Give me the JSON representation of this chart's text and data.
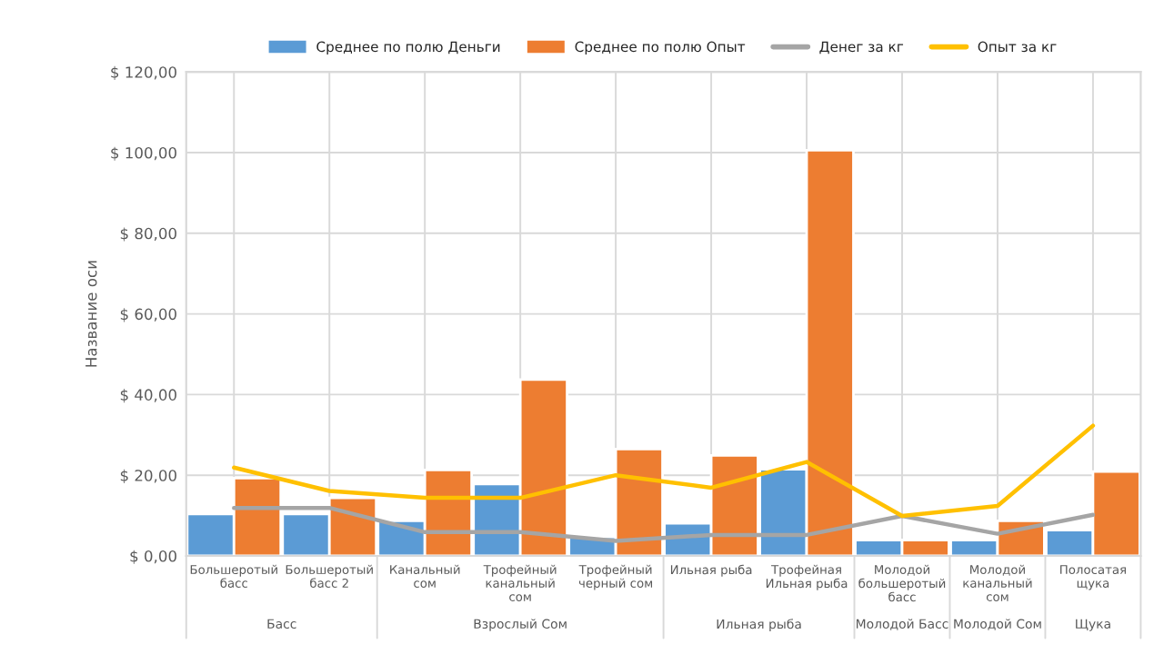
{
  "chart_data": {
    "type": "bar",
    "categories": [
      "Большеротый басс",
      "Большеротый басс 2",
      "Канальный сом",
      "Трофейный канальный сом",
      "Трофейный черный сом",
      "Ильная рыба",
      "Трофейная Ильная рыба",
      "Молодой большеротый басс",
      "Молодой канальный сом",
      "Полосатая щука"
    ],
    "ylabel": "Название оси",
    "series": [
      {
        "name": "Среднее по полю Деньги",
        "color": "#5b9bd5",
        "values": [
          10.4,
          10.4,
          8.7,
          17.8,
          4.7,
          8.1,
          21.5,
          3.9,
          3.9,
          6.4
        ]
      },
      {
        "name": "Среднее по полю Опыт",
        "color": "#ed7d31",
        "values": [
          19.3,
          14.4,
          21.3,
          43.7,
          26.5,
          24.9,
          100.6,
          3.9,
          8.7,
          20.9
        ]
      },
      {
        "name": "Денег за кг",
        "type": "line",
        "color": "#a5a5a5",
        "values": [
          11.9,
          11.9,
          5.9,
          5.9,
          3.7,
          5.2,
          5.2,
          9.9,
          5.5,
          10.2
        ]
      },
      {
        "name": "Опыт за кг",
        "type": "line",
        "color": "#ffc000",
        "values": [
          21.9,
          16.1,
          14.4,
          14.4,
          20,
          16.9,
          23.3,
          9.9,
          12.4,
          32.3
        ]
      }
    ],
    "ylim": [
      0,
      120
    ],
    "yticks": [
      {
        "value": 0,
        "label": "$ 0,00"
      },
      {
        "value": 20,
        "label": "$ 20,00"
      },
      {
        "value": 40,
        "label": "$ 40,00"
      },
      {
        "value": 60,
        "label": "$ 60,00"
      },
      {
        "value": 80,
        "label": "$ 80,00"
      },
      {
        "value": 100,
        "label": "$ 100,00"
      },
      {
        "value": 120,
        "label": "$ 120,00"
      }
    ],
    "annotations": [
      "Басс",
      "Взрослый Сом",
      "Ильная рыба",
      "Молодой Басс",
      "Молодой Сом",
      "Щука"
    ],
    "grid": true,
    "legend": "top",
    "marker": "none",
    "line_style": "solid"
  }
}
